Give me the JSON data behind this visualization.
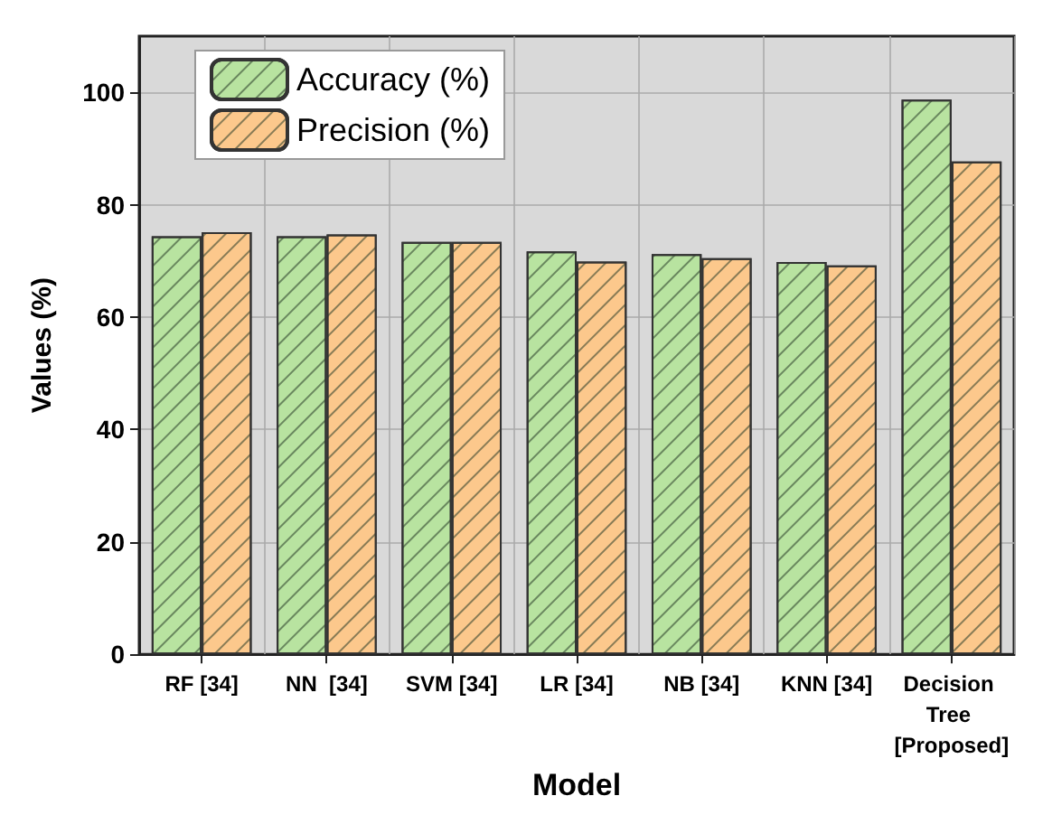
{
  "chart_data": {
    "type": "bar",
    "xlabel": "Model",
    "ylabel": "Values (%)",
    "categories": [
      "RF [34]",
      "NN  [34]",
      "SVM [34]",
      "LR [34]",
      "NB [34]",
      "KNN [34]",
      "Decision Tree [Proposed]"
    ],
    "series": [
      {
        "name": "Accuracy (%)",
        "color": "#b8e3a0",
        "values": [
          74.4,
          74.4,
          73.4,
          71.7,
          71.2,
          69.8,
          98.7
        ]
      },
      {
        "name": "Precision (%)",
        "color": "#fcc88c",
        "values": [
          75.1,
          74.7,
          73.4,
          69.9,
          70.5,
          69.2,
          87.7
        ]
      }
    ],
    "ylim": [
      0,
      110
    ],
    "yticks": [
      0,
      20,
      40,
      60,
      80,
      100
    ],
    "grid": true,
    "legend": "top left"
  }
}
